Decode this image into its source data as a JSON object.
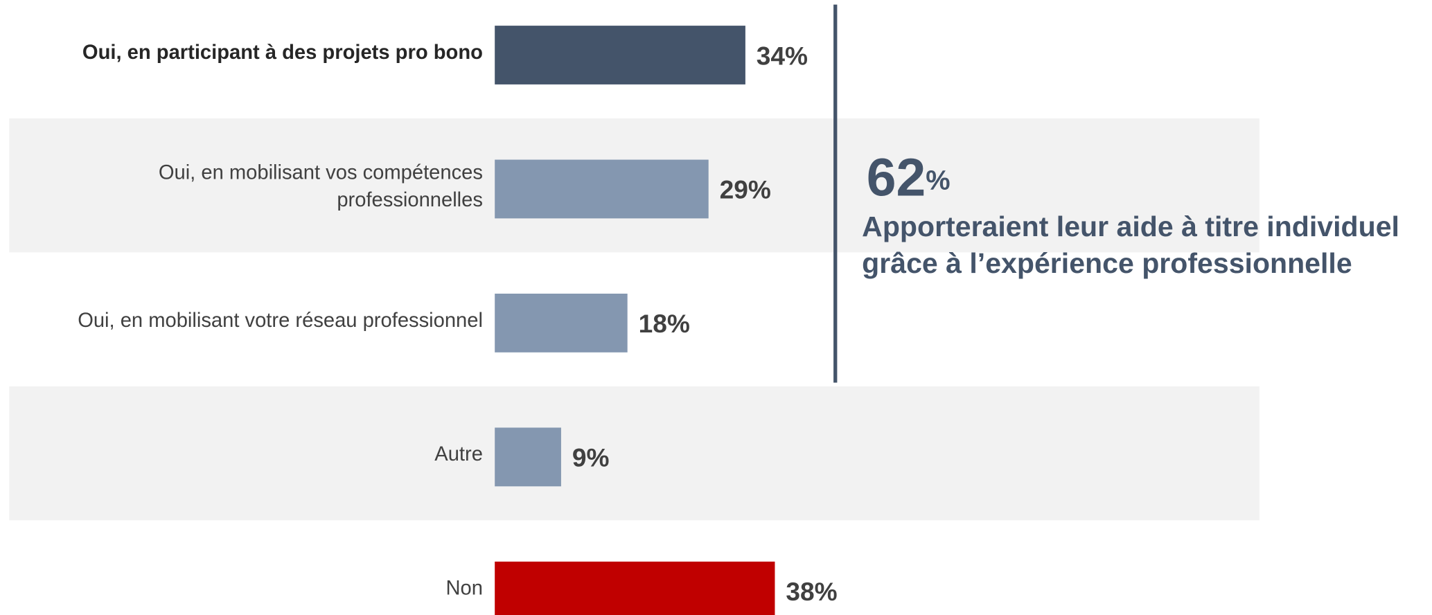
{
  "chart_data": {
    "type": "hbar",
    "categories": [
      "Oui, en participant à des projets pro bono",
      "Oui, en mobilisant vos compétences\nprofessionnelles",
      "Oui, en mobilisant votre réseau professionnel",
      "Autre",
      "Non"
    ],
    "values": [
      34,
      29,
      18,
      9,
      38
    ],
    "value_labels": [
      "34%",
      "29%",
      "18%",
      "9%",
      "38%"
    ],
    "colors": [
      "#44546a",
      "#8497b0",
      "#8497b0",
      "#8497b0",
      "#c00000"
    ],
    "bold_categories": [
      0
    ],
    "annotation": {
      "value": 62,
      "label": "62%",
      "text": [
        "Apporteraient leur aide à titre individuel",
        "grâce à l’expérience professionnelle"
      ]
    }
  }
}
